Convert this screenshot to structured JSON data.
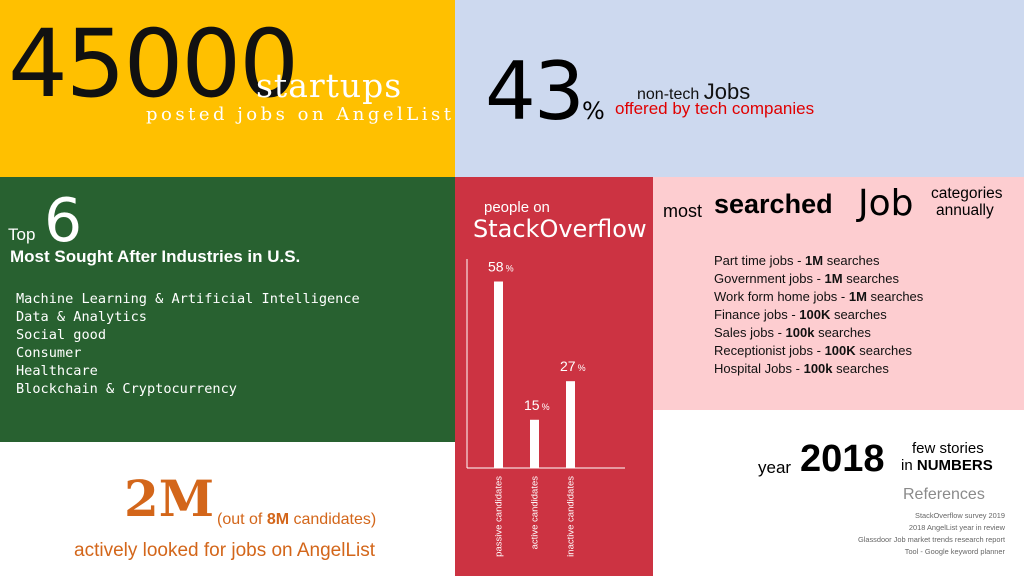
{
  "startups_panel": {
    "number": "45000",
    "label": "startups",
    "subtitle": "posted jobs on AngelList"
  },
  "nontech_panel": {
    "number": "43",
    "percent_sign": "%",
    "label_prefix": "non-tech",
    "label_jobs": "Jobs",
    "subtitle": "offered by tech companies"
  },
  "industries_panel": {
    "top_word": "Top",
    "number": "6",
    "title": "Most Sought After Industries in U.S.",
    "items": [
      "Machine Learning & Artificial Intelligence",
      "Data & Analytics",
      "Social good",
      "Consumer",
      "Healthcare",
      "Blockchain & Cryptocurrency"
    ]
  },
  "candidates_panel": {
    "number": "2M",
    "outof_prefix": "(out of",
    "outof_value": "8M",
    "outof_suffix": "candidates)",
    "subtitle": "actively looked for jobs on AngelList"
  },
  "stackoverflow_panel": {
    "label": "people on",
    "title": "StackOverflow"
  },
  "chart_data": {
    "type": "bar",
    "categories": [
      "passive candidates",
      "active candidates",
      "inactive candidates"
    ],
    "values": [
      58,
      15,
      27
    ],
    "unit": "%",
    "ylim": [
      0,
      65
    ]
  },
  "searched_panel": {
    "most": "most",
    "searched": "searched",
    "job": "Job",
    "categories": "categories",
    "annually": "annually",
    "items": [
      {
        "name": "Part time jobs - ",
        "value": "1M",
        "suffix": " searches"
      },
      {
        "name": "Government jobs - ",
        "value": "1M",
        "suffix": " searches"
      },
      {
        "name": "Work form home jobs - ",
        "value": "1M",
        "suffix": " searches"
      },
      {
        "name": "Finance jobs - ",
        "value": "100K",
        "suffix": " searches"
      },
      {
        "name": "Sales jobs - ",
        "value": "100k",
        "suffix": " searches"
      },
      {
        "name": "Receptionist jobs - ",
        "value": "100K",
        "suffix": " searches"
      },
      {
        "name": "Hospital Jobs - ",
        "value": "100k",
        "suffix": " searches"
      }
    ]
  },
  "year_panel": {
    "year_word": "year",
    "year": "2018",
    "few_stories": "few stories",
    "in_word": "in",
    "numbers_word": "NUMBERS",
    "references_title": "References",
    "references": [
      "StackOverflow survey 2019",
      "2018 AngelList year in review",
      "Glassdoor Job market trends research report",
      "Tool - Google keyword planner"
    ]
  },
  "colors": {
    "yellow": "#ffc000",
    "light_blue": "#cdd9ef",
    "green": "#286130",
    "red": "#cc3342",
    "pink": "#fdcdd0",
    "orange_text": "#d3661a",
    "red_text": "#e00000"
  }
}
